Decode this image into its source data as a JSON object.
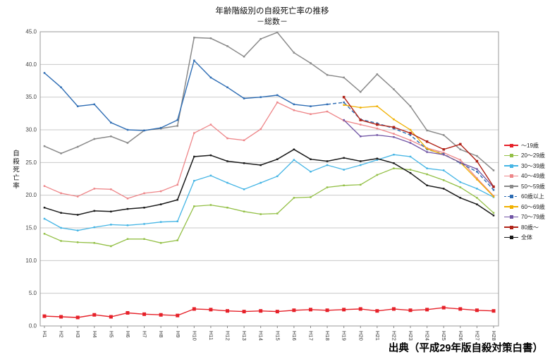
{
  "source": {
    "label": "出典（平成29年版自殺対策白書）"
  },
  "chart_data": {
    "type": "line",
    "title": "年齢階級別の自殺死亡率の推移",
    "subtitle": "－総数－",
    "ylabel": "自殺死亡率",
    "xlabel": "",
    "ylim": [
      0,
      45
    ],
    "ytick_step": 5,
    "grid": "horizontal",
    "legend_position": "right",
    "categories": [
      "H1",
      "H2",
      "H3",
      "H4",
      "H5",
      "H6",
      "H7",
      "H8",
      "H9",
      "H10",
      "H11",
      "H12",
      "H13",
      "H14",
      "H15",
      "H16",
      "H17",
      "H18",
      "H19",
      "H20",
      "H21",
      "H22",
      "H23",
      "H24",
      "H25",
      "H26",
      "H27",
      "H28"
    ],
    "series": [
      {
        "name": "～19歳",
        "color": "#e62129",
        "marker": 5,
        "width": 1.4,
        "values": [
          1.5,
          1.4,
          1.3,
          1.7,
          1.4,
          2.0,
          1.8,
          1.7,
          1.6,
          2.6,
          2.5,
          2.3,
          2.2,
          2.3,
          2.2,
          2.4,
          2.5,
          2.4,
          2.5,
          2.6,
          2.3,
          2.6,
          2.4,
          2.5,
          2.8,
          2.6,
          2.4,
          2.3
        ]
      },
      {
        "name": "20～29歳",
        "color": "#94c047",
        "marker": 2.5,
        "width": 1.3,
        "values": [
          14.1,
          13.0,
          12.8,
          12.7,
          12.2,
          13.3,
          13.3,
          12.7,
          13.1,
          18.3,
          18.5,
          18.1,
          17.5,
          17.1,
          17.2,
          19.6,
          19.7,
          21.2,
          21.5,
          21.6,
          23.1,
          24.1,
          23.9,
          23.2,
          22.3,
          21.2,
          19.6,
          17.3
        ]
      },
      {
        "name": "30～39歳",
        "color": "#45b5e5",
        "marker": 2.5,
        "width": 1.3,
        "values": [
          16.4,
          15.0,
          14.6,
          15.1,
          15.5,
          15.4,
          15.6,
          15.9,
          16.0,
          22.2,
          23.0,
          21.9,
          20.9,
          21.9,
          22.9,
          25.4,
          23.6,
          24.6,
          23.9,
          24.6,
          25.4,
          26.2,
          25.9,
          24.1,
          23.8,
          22.0,
          21.0,
          19.7
        ]
      },
      {
        "name": "40～49歳",
        "color": "#ee8689",
        "marker": 2.5,
        "width": 1.3,
        "values": [
          21.4,
          20.3,
          19.8,
          21.0,
          20.9,
          19.5,
          20.3,
          20.6,
          21.6,
          29.5,
          30.8,
          28.7,
          28.4,
          30.1,
          34.2,
          33.0,
          32.4,
          32.8,
          31.4,
          30.8,
          30.2,
          29.4,
          28.4,
          27.2,
          26.5,
          25.4,
          22.6,
          19.9
        ]
      },
      {
        "name": "50～59歳",
        "color": "#8a8a8a",
        "marker": 2.5,
        "width": 1.5,
        "values": [
          27.5,
          26.4,
          27.4,
          28.6,
          29.0,
          28.0,
          29.9,
          30.2,
          30.6,
          44.1,
          44.0,
          42.8,
          41.2,
          43.9,
          44.9,
          41.8,
          40.2,
          38.4,
          38.0,
          35.8,
          38.5,
          36.2,
          33.6,
          29.9,
          29.2,
          27.0,
          26.0,
          23.8
        ]
      },
      {
        "name": "60歳以上",
        "color": "#2e6db4",
        "marker": 2.5,
        "width": 1.4,
        "dash_from_index": 17,
        "values": [
          38.7,
          36.5,
          33.6,
          33.9,
          31.1,
          30.0,
          29.9,
          30.3,
          31.5,
          40.6,
          38.0,
          36.5,
          34.8,
          35.0,
          35.3,
          33.9,
          33.6,
          33.9,
          34.2,
          31.6,
          31.0,
          30.2,
          29.2,
          27.0,
          26.3,
          24.9,
          23.6,
          20.8
        ]
      },
      {
        "name": "60～69歳",
        "color": "#f0b000",
        "marker": 2.5,
        "width": 1.3,
        "values": [
          null,
          null,
          null,
          null,
          null,
          null,
          null,
          null,
          null,
          null,
          null,
          null,
          null,
          null,
          null,
          null,
          null,
          null,
          33.8,
          33.4,
          33.6,
          31.6,
          30.0,
          27.1,
          26.2,
          25.0,
          22.4,
          19.8
        ]
      },
      {
        "name": "70～79歳",
        "color": "#7155a5",
        "marker": 2.5,
        "width": 1.3,
        "values": [
          null,
          null,
          null,
          null,
          null,
          null,
          null,
          null,
          null,
          null,
          null,
          null,
          null,
          null,
          null,
          null,
          null,
          null,
          31.5,
          29.0,
          29.2,
          28.9,
          28.0,
          26.6,
          26.2,
          25.0,
          24.0,
          21.2
        ]
      },
      {
        "name": "80歳～",
        "color": "#b02318",
        "marker": 3.5,
        "width": 1.4,
        "values": [
          null,
          null,
          null,
          null,
          null,
          null,
          null,
          null,
          null,
          null,
          null,
          null,
          null,
          null,
          null,
          null,
          null,
          null,
          35.0,
          31.5,
          30.8,
          30.4,
          29.5,
          28.2,
          27.0,
          27.8,
          25.2,
          21.3
        ]
      },
      {
        "name": "全体",
        "color": "#1a1a1a",
        "marker": 2.5,
        "width": 1.5,
        "values": [
          18.1,
          17.3,
          17.0,
          17.6,
          17.5,
          17.9,
          18.1,
          18.6,
          19.3,
          25.9,
          26.1,
          25.2,
          24.9,
          24.6,
          25.5,
          27.0,
          25.5,
          25.2,
          25.7,
          25.2,
          25.6,
          24.9,
          23.4,
          21.5,
          21.0,
          19.6,
          18.6,
          16.9
        ]
      }
    ]
  }
}
